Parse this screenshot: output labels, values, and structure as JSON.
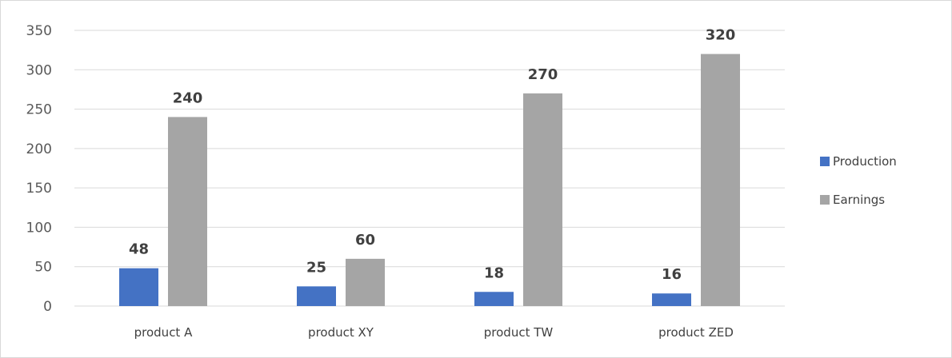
{
  "chart_data": {
    "type": "bar",
    "categories": [
      "product A",
      "product XY",
      "product TW",
      "product ZED"
    ],
    "series": [
      {
        "name": "Production",
        "values": [
          48,
          25,
          18,
          16
        ],
        "color": "#4472c4"
      },
      {
        "name": "Earnings",
        "values": [
          240,
          60,
          270,
          320
        ],
        "color": "#a5a5a5"
      }
    ],
    "title": "",
    "xlabel": "",
    "ylabel": "",
    "ylim": [
      0,
      350
    ],
    "yticks": [
      "0",
      "50",
      "100",
      "150",
      "200",
      "250",
      "300",
      "350"
    ],
    "grid": true,
    "legend_position": "right"
  },
  "colors": {
    "gridline": "#d9d9d9",
    "axis_line": "#d9d9d9",
    "border": "#d9d9d9"
  }
}
